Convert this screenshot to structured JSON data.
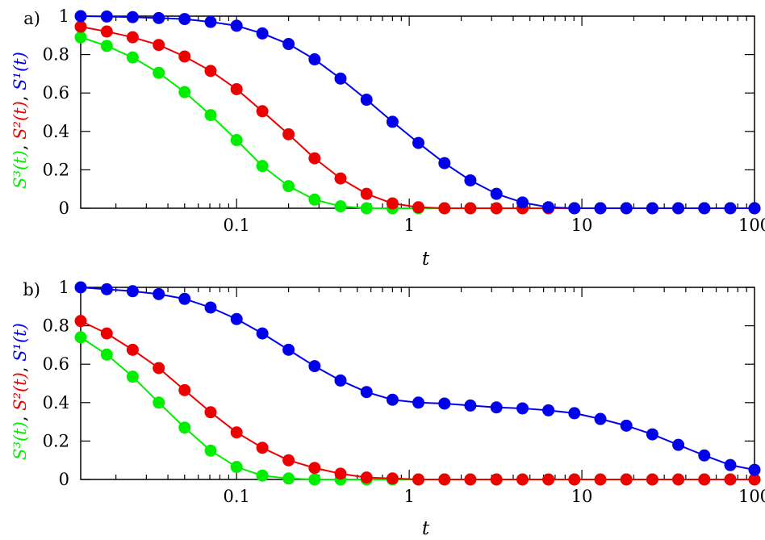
{
  "chart_data": [
    {
      "type": "line",
      "panel_label": "a)",
      "xlabel": "t",
      "ylabel_parts": [
        "S³(t)",
        ", ",
        "S²(t)",
        ", ",
        "S¹(t)"
      ],
      "xscale": "log",
      "xlim": [
        0.0125,
        100
      ],
      "ylim": [
        0,
        1
      ],
      "x_ticks": [
        {
          "value": 0.1,
          "label": "0.1"
        },
        {
          "value": 1,
          "label": "1"
        },
        {
          "value": 10,
          "label": "10"
        },
        {
          "value": 100,
          "label": "100"
        }
      ],
      "y_ticks": [
        {
          "value": 0,
          "label": "0"
        },
        {
          "value": 0.2,
          "label": "0.2"
        },
        {
          "value": 0.4,
          "label": "0.4"
        },
        {
          "value": 0.6,
          "label": "0.6"
        },
        {
          "value": 0.8,
          "label": "0.8"
        },
        {
          "value": 1,
          "label": "1"
        }
      ],
      "x": [
        0.0125,
        0.0177,
        0.025,
        0.0354,
        0.05,
        0.0707,
        0.1,
        0.141,
        0.2,
        0.283,
        0.4,
        0.566,
        0.8,
        1.13,
        1.6,
        2.26,
        3.2,
        4.53,
        6.4,
        9.05,
        12.8,
        18.1,
        25.6,
        36.2,
        51.2,
        72.4,
        100
      ],
      "series": [
        {
          "color": "#00ee00",
          "values": [
            0.89,
            0.845,
            0.785,
            0.705,
            0.605,
            0.485,
            0.355,
            0.22,
            0.115,
            0.045,
            0.01,
            0.0,
            0.0,
            0.0,
            0.0,
            0.0,
            0.0,
            0.0,
            0.0,
            0.0,
            0.0,
            0.0,
            0.0,
            0.0,
            0.0,
            0.0,
            0.0
          ]
        },
        {
          "color": "#ee0000",
          "values": [
            0.945,
            0.92,
            0.89,
            0.85,
            0.79,
            0.715,
            0.62,
            0.505,
            0.385,
            0.26,
            0.155,
            0.075,
            0.025,
            0.005,
            0.0,
            0.0,
            0.0,
            0.0,
            0.0,
            0.0,
            0.0,
            0.0,
            0.0,
            0.0,
            0.0,
            0.0,
            0.0
          ]
        },
        {
          "color": "#0000ee",
          "values": [
            1.0,
            0.998,
            0.995,
            0.99,
            0.985,
            0.97,
            0.95,
            0.91,
            0.855,
            0.775,
            0.675,
            0.565,
            0.45,
            0.34,
            0.235,
            0.145,
            0.075,
            0.03,
            0.005,
            0.0,
            0.0,
            0.0,
            0.0,
            0.0,
            0.0,
            0.0,
            0.0
          ]
        }
      ]
    },
    {
      "type": "line",
      "panel_label": "b)",
      "xlabel": "t",
      "ylabel_parts": [
        "S³(t)",
        ", ",
        "S²(t)",
        ", ",
        "S¹(t)"
      ],
      "xscale": "log",
      "xlim": [
        0.0125,
        100
      ],
      "ylim": [
        0,
        1
      ],
      "x_ticks": [
        {
          "value": 0.1,
          "label": "0.1"
        },
        {
          "value": 1,
          "label": "1"
        },
        {
          "value": 10,
          "label": "10"
        },
        {
          "value": 100,
          "label": "100"
        }
      ],
      "y_ticks": [
        {
          "value": 0,
          "label": "0"
        },
        {
          "value": 0.2,
          "label": "0.2"
        },
        {
          "value": 0.4,
          "label": "0.4"
        },
        {
          "value": 0.6,
          "label": "0.6"
        },
        {
          "value": 0.8,
          "label": "0.8"
        },
        {
          "value": 1,
          "label": "1"
        }
      ],
      "x": [
        0.0125,
        0.0177,
        0.025,
        0.0354,
        0.05,
        0.0707,
        0.1,
        0.141,
        0.2,
        0.283,
        0.4,
        0.566,
        0.8,
        1.13,
        1.6,
        2.26,
        3.2,
        4.53,
        6.4,
        9.05,
        12.8,
        18.1,
        25.6,
        36.2,
        51.2,
        72.4,
        100
      ],
      "series": [
        {
          "color": "#00ee00",
          "values": [
            0.74,
            0.65,
            0.535,
            0.4,
            0.27,
            0.15,
            0.065,
            0.02,
            0.005,
            0.0,
            0.0,
            0.0,
            0.0,
            0.0,
            0.0,
            0.0,
            0.0,
            0.0,
            0.0,
            0.0,
            0.0,
            0.0,
            0.0,
            0.0,
            0.0,
            0.0,
            0.0
          ]
        },
        {
          "color": "#ee0000",
          "values": [
            0.825,
            0.76,
            0.675,
            0.58,
            0.465,
            0.35,
            0.245,
            0.165,
            0.1,
            0.06,
            0.03,
            0.01,
            0.005,
            0.0,
            0.0,
            0.0,
            0.0,
            0.0,
            0.0,
            0.0,
            0.0,
            0.0,
            0.0,
            0.0,
            0.0,
            0.0,
            0.0
          ]
        },
        {
          "color": "#0000ee",
          "values": [
            1.0,
            0.99,
            0.98,
            0.965,
            0.94,
            0.895,
            0.835,
            0.76,
            0.675,
            0.59,
            0.515,
            0.455,
            0.415,
            0.4,
            0.395,
            0.385,
            0.375,
            0.37,
            0.36,
            0.345,
            0.315,
            0.28,
            0.235,
            0.18,
            0.125,
            0.075,
            0.05
          ]
        }
      ]
    }
  ]
}
